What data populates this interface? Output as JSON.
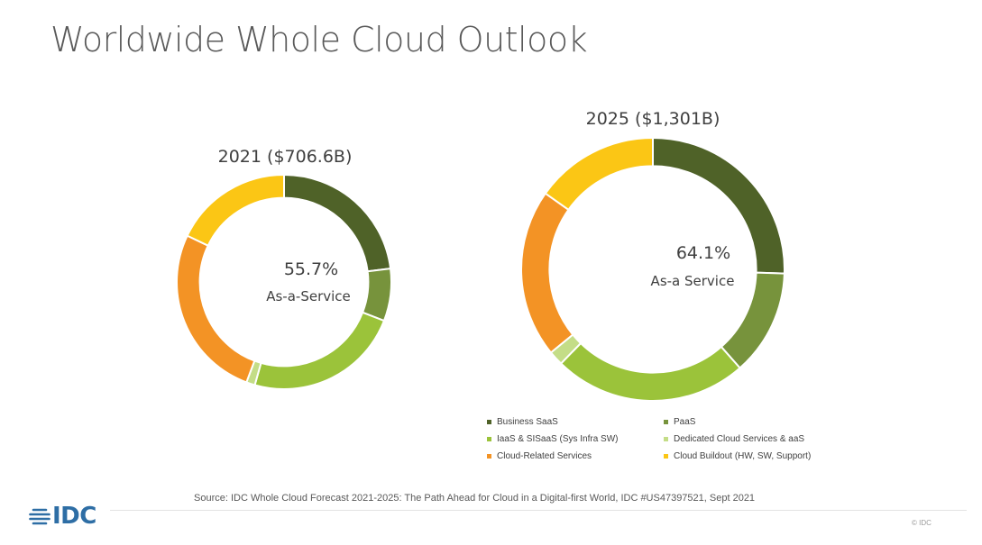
{
  "page": {
    "title": "Worldwide Whole Cloud Outlook",
    "source": "Source: IDC Whole Cloud Forecast 2021-2025: The Path Ahead for Cloud in a Digital-first World, IDC #US47397521, Sept 2021",
    "logo": "IDC",
    "copyright": "© IDC"
  },
  "colors": {
    "Business SaaS": "#4f6228",
    "PaaS": "#77933c",
    "IaaS & SISaaS (Sys Infra SW)": "#9bc33a",
    "Dedicated Cloud Services & aaS": "#c4dd87",
    "Cloud-Related Services": "#f39325",
    "Cloud Buildout (HW, SW, Support)": "#fbc615",
    "logo": "#2e6ea5"
  },
  "chart_data": [
    {
      "type": "pie",
      "subtype": "donut",
      "title": "2021 ($706.6B)",
      "center_value": "55.7%",
      "center_label": "As-a-Service",
      "categories": [
        "Business SaaS",
        "PaaS",
        "IaaS & SISaaS (Sys Infra SW)",
        "Dedicated Cloud Services & aaS",
        "Cloud-Related Services",
        "Cloud Buildout (HW, SW, Support)"
      ],
      "values": [
        23.0,
        7.9,
        23.5,
        1.3,
        26.4,
        17.9
      ]
    },
    {
      "type": "pie",
      "subtype": "donut",
      "title": "2025 ($1,301B)",
      "center_value": "64.1%",
      "center_label": "As-a Service",
      "categories": [
        "Business SaaS",
        "PaaS",
        "IaaS & SISaaS (Sys Infra SW)",
        "Dedicated Cloud Services & aaS",
        "Cloud-Related Services",
        "Cloud Buildout (HW, SW, Support)"
      ],
      "values": [
        25.5,
        13.0,
        23.8,
        1.8,
        20.7,
        15.2
      ]
    }
  ],
  "legend": {
    "placement": "bottom",
    "items": [
      "Business SaaS",
      "PaaS",
      "IaaS & SISaaS (Sys Infra SW)",
      "Dedicated Cloud Services & aaS",
      "Cloud-Related Services",
      "Cloud Buildout (HW, SW, Support)"
    ]
  }
}
